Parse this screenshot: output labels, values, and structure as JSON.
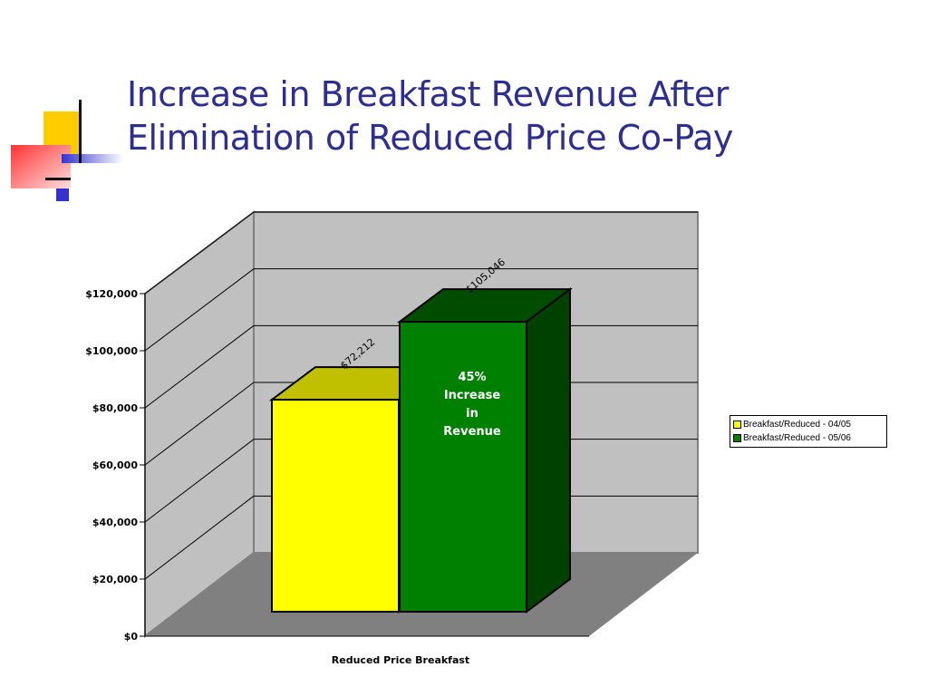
{
  "slide": {
    "title_line1": "Increase in Breakfast Revenue After",
    "title_line2": "Elimination of Reduced Price Co-Pay"
  },
  "chart_data": {
    "type": "bar",
    "three_d": true,
    "categories": [
      "Reduced Price Breakfast"
    ],
    "xlabel": "Reduced Price Breakfast",
    "ylabel": "",
    "ylim": [
      0,
      120000
    ],
    "yticks": [
      0,
      20000,
      40000,
      60000,
      80000,
      100000,
      120000
    ],
    "ytick_labels": [
      "$0",
      "$20,000",
      "$40,000",
      "$60,000",
      "$80,000",
      "$100,000",
      "$120,000"
    ],
    "grid": true,
    "legend_position": "right",
    "series": [
      {
        "name": "Breakfast/Reduced -  04/05",
        "values": [
          72212
        ],
        "data_label": "$72,212",
        "color": "#ffff00"
      },
      {
        "name": "Breakfast/Reduced - 05/06",
        "values": [
          105046
        ],
        "data_label": "$105,046",
        "color": "#008000"
      }
    ],
    "annotation": [
      "45%",
      "Increase",
      "in",
      "Revenue"
    ]
  }
}
